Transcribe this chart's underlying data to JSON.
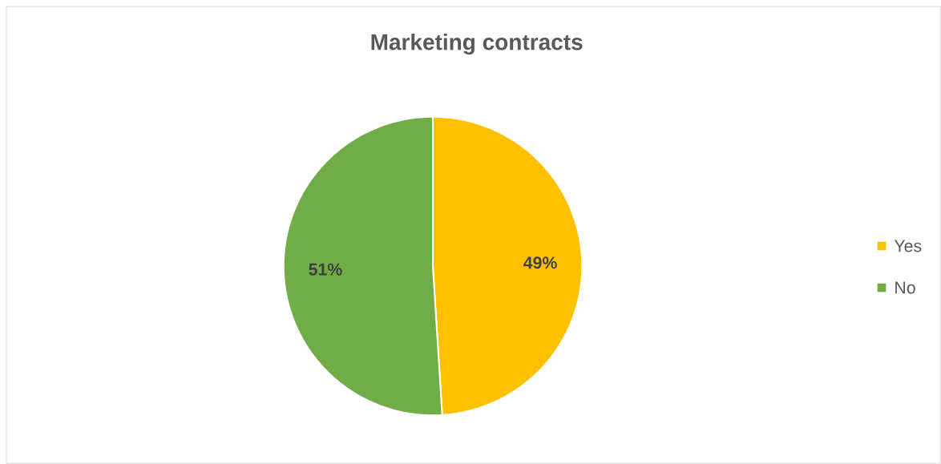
{
  "chart_data": {
    "type": "pie",
    "title": "Marketing contracts",
    "categories": [
      "Yes",
      "No"
    ],
    "values": [
      49,
      51
    ],
    "colors": [
      "#ffc000",
      "#70ad47"
    ],
    "value_labels": [
      "49%",
      "51%"
    ],
    "legend": "right"
  }
}
